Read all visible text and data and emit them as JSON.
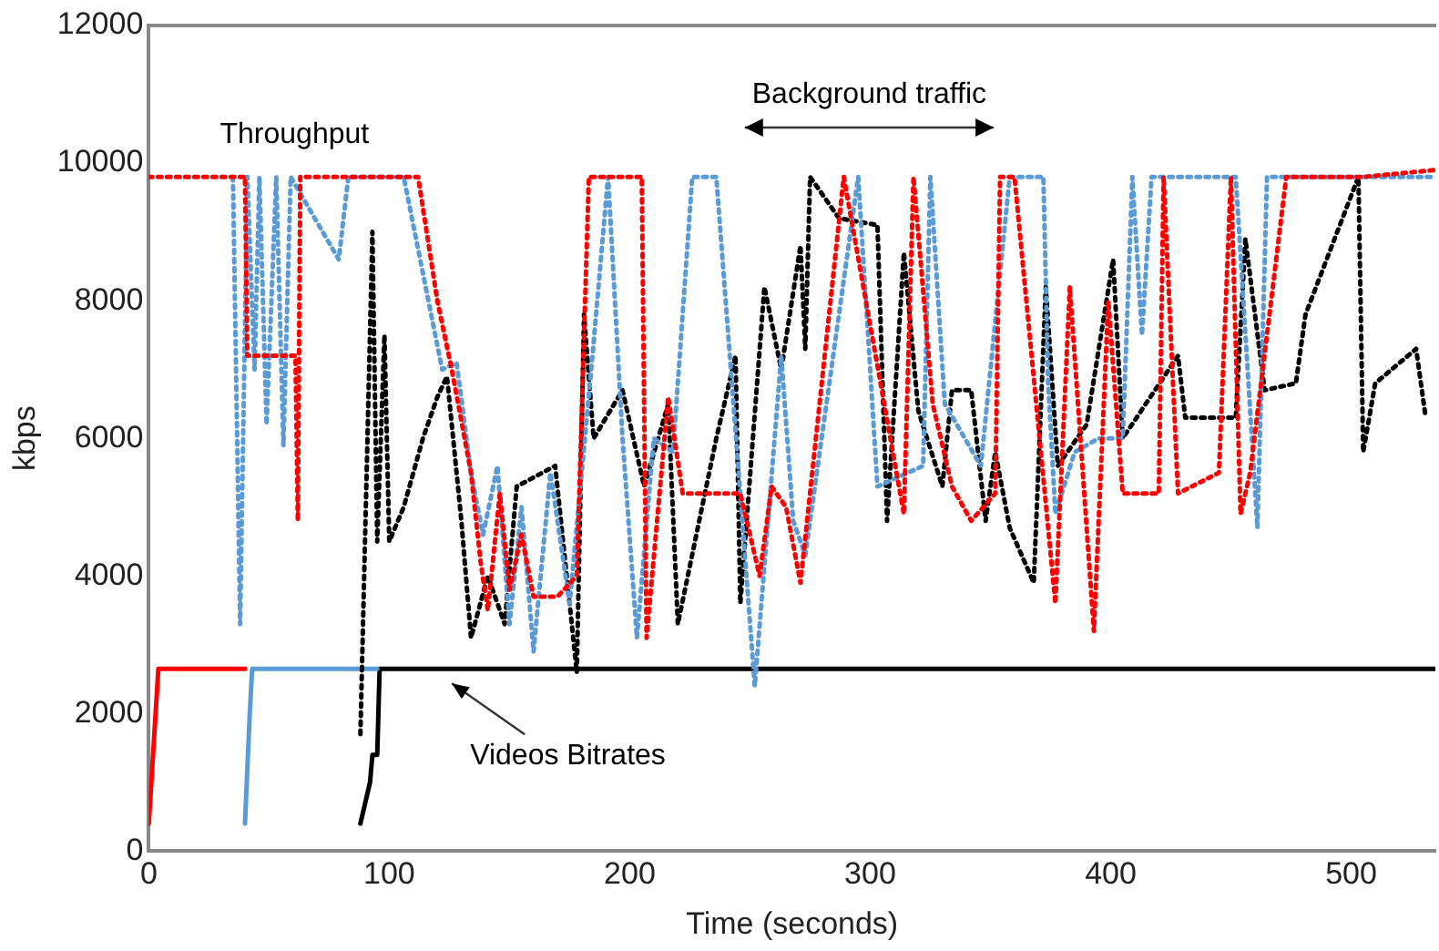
{
  "chart_data": {
    "type": "line",
    "xlabel": "Time (seconds)",
    "ylabel": "kbps",
    "xlim": [
      0,
      535
    ],
    "xticks": [
      0,
      100,
      200,
      300,
      400,
      500
    ],
    "ylim": [
      0,
      12000
    ],
    "yticks": [
      0,
      2000,
      4000,
      6000,
      8000,
      10000,
      12000
    ],
    "grid": false,
    "legend": false,
    "marker": "none",
    "annotations": [
      "Throughput",
      "Background traffic",
      {
        "text": "Videos Bitrates",
        "x": 120,
        "y": 2650
      }
    ],
    "series": [
      {
        "color": "#ff0000",
        "line_style": "dotted",
        "x": [
          0,
          40,
          41,
          61,
          62,
          63,
          112,
          120,
          126,
          134,
          138,
          141,
          146,
          150,
          155,
          160,
          170,
          178,
          183,
          205,
          207,
          216,
          222,
          246,
          254,
          259,
          265,
          271,
          289,
          314,
          318,
          326,
          334,
          342,
          352,
          354,
          360,
          377,
          383,
          393,
          399,
          405,
          420,
          422,
          428,
          445,
          450,
          454,
          458,
          473,
          505,
          535
        ],
        "values": [
          9800,
          9800,
          7200,
          7200,
          4800,
          9800,
          9800,
          8000,
          7000,
          5500,
          4200,
          3500,
          5200,
          3800,
          4600,
          3700,
          3700,
          4000,
          9800,
          9800,
          3100,
          6600,
          5200,
          5200,
          4000,
          5300,
          5000,
          3900,
          9800,
          4900,
          9800,
          6500,
          5300,
          4800,
          5200,
          9800,
          9800,
          3600,
          8200,
          3200,
          8000,
          5200,
          5200,
          9800,
          5200,
          5500,
          9800,
          4900,
          5500,
          9800,
          9800,
          9900
        ]
      },
      {
        "color": "#5b9bd5",
        "line_style": "dotted",
        "x": [
          35,
          38,
          41,
          44,
          46,
          49,
          53,
          56,
          59,
          79,
          83,
          106,
          122,
          128,
          134,
          139,
          145,
          150,
          155,
          160,
          167,
          175,
          184,
          191,
          197,
          203,
          210,
          218,
          226,
          236,
          252,
          263,
          268,
          273,
          295,
          303,
          322,
          325,
          331,
          346,
          358,
          372,
          374,
          377,
          385,
          395,
          405,
          409,
          413,
          417,
          452,
          461,
          465,
          535
        ],
        "values": [
          9800,
          3300,
          9800,
          7000,
          9800,
          6200,
          9800,
          5900,
          9800,
          8600,
          9800,
          9800,
          7000,
          7100,
          5500,
          4600,
          5600,
          3300,
          5000,
          2900,
          5500,
          3600,
          7000,
          9800,
          6000,
          3100,
          6000,
          5800,
          9800,
          9800,
          2400,
          7200,
          4800,
          4300,
          9800,
          5300,
          5600,
          9800,
          6500,
          5600,
          9800,
          9800,
          6800,
          4900,
          5800,
          6000,
          6000,
          9800,
          7500,
          9800,
          9800,
          4700,
          9800,
          9800
        ]
      },
      {
        "color": "#000000",
        "line_style": "dotted",
        "x": [
          88,
          93,
          95,
          98,
          100,
          106,
          114,
          120,
          124,
          130,
          134,
          141,
          148,
          153,
          169,
          178,
          181,
          185,
          197,
          206,
          216,
          220,
          236,
          244,
          246,
          256,
          263,
          271,
          273,
          275,
          287,
          303,
          307,
          314,
          320,
          330,
          334,
          342,
          348,
          352,
          358,
          368,
          373,
          378,
          390,
          401,
          405,
          428,
          431,
          452,
          456,
          464,
          477,
          481,
          503,
          505,
          510,
          527,
          531
        ],
        "values": [
          1700,
          9000,
          4500,
          7500,
          4500,
          5000,
          6000,
          6600,
          6900,
          4800,
          3100,
          4000,
          3300,
          5300,
          5600,
          2600,
          7800,
          6000,
          6700,
          5300,
          6500,
          3300,
          6000,
          7200,
          3600,
          8200,
          7000,
          8800,
          7300,
          9800,
          9200,
          9100,
          4800,
          8700,
          6400,
          5300,
          6700,
          6700,
          4800,
          5800,
          4700,
          3900,
          8200,
          5600,
          6200,
          8600,
          6000,
          7200,
          6300,
          6300,
          8900,
          6700,
          6800,
          7800,
          9800,
          5800,
          6800,
          7300,
          6300
        ]
      },
      {
        "color": "#ff0000",
        "line_style": "solid",
        "x": [
          0,
          4,
          40
        ],
        "values": [
          400,
          2650,
          2650
        ]
      },
      {
        "color": "#5b9bd5",
        "line_style": "solid",
        "x": [
          40,
          42,
          43,
          95
        ],
        "values": [
          400,
          2000,
          2650,
          2650
        ]
      },
      {
        "color": "#000000",
        "line_style": "solid",
        "x": [
          88,
          92,
          93,
          95,
          96,
          535
        ],
        "values": [
          400,
          1000,
          1400,
          1400,
          2650,
          2650
        ]
      }
    ]
  }
}
